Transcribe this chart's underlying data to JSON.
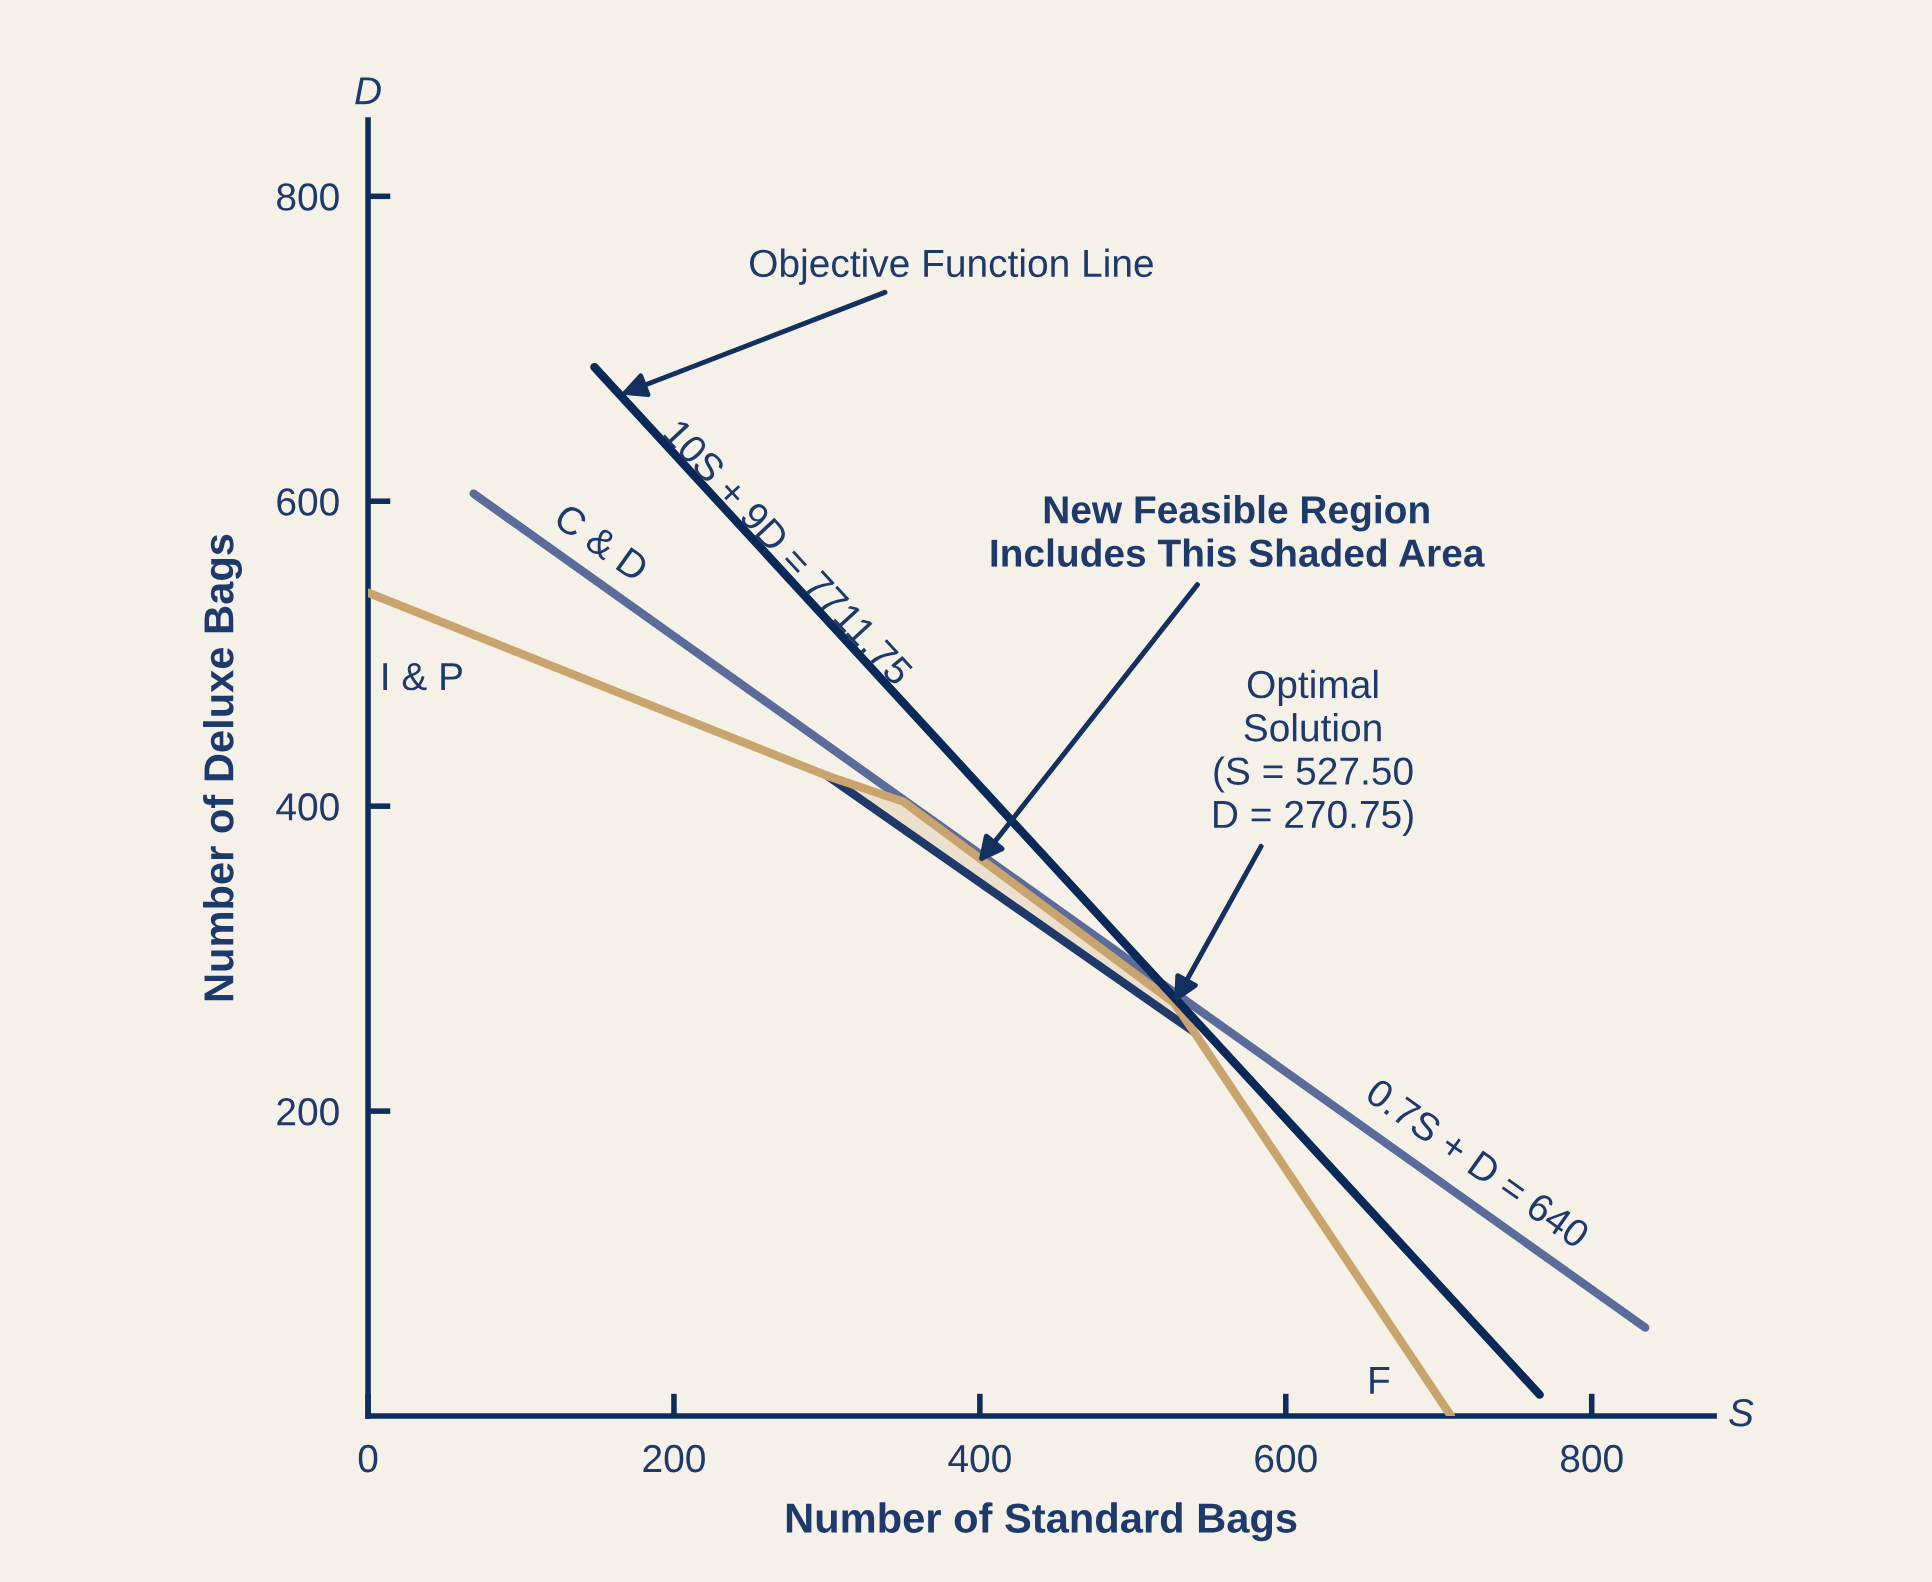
{
  "chart_data": {
    "type": "line",
    "xlabel": "Number of Standard Bags",
    "ylabel": "Number of Deluxe Bags",
    "xlim": [
      0,
      880
    ],
    "ylim": [
      0,
      850
    ],
    "xticks": [
      0,
      200,
      400,
      600,
      800
    ],
    "yticks": [
      200,
      400,
      600,
      800
    ],
    "grid": false,
    "legend": false,
    "marker": "none",
    "line_style": "solid",
    "series": [
      {
        "color": "#1f3a6a",
        "x": [
          300,
          350,
          527,
          540
        ],
        "values": [
          420,
          385,
          261,
          252
        ]
      },
      {
        "color": "#5b6b9b",
        "x": [
          69,
          835
        ],
        "values": [
          605,
          58
        ]
      },
      {
        "color": "#c9a46e",
        "x": [
          0,
          300,
          350,
          527,
          540,
          708
        ],
        "values": [
          540,
          420,
          403,
          271,
          252,
          0
        ],
        "lower": [
          null,
          420,
          385,
          261,
          252,
          null
        ],
        "upper": [
          null,
          420,
          403,
          271,
          252,
          null
        ]
      },
      {
        "color": "#0a2858",
        "x": [
          148,
          766
        ],
        "values": [
          688,
          14
        ]
      }
    ],
    "annotations": [
      {
        "text": "Objective Function Line",
        "x": 165,
        "y": 670
      },
      {
        "text": "New Feasible Region\nIncludes This Shaded Area",
        "x": 399,
        "y": 363
      },
      {
        "text": "Optimal\nSolution\n(S = 527.50\nD = 270.75)",
        "x": 527,
        "y": 271
      },
      "10S + 9D = 7711.75",
      "C & D",
      "0.7S + D = 640",
      "I & P",
      "F",
      "D",
      "S"
    ]
  }
}
